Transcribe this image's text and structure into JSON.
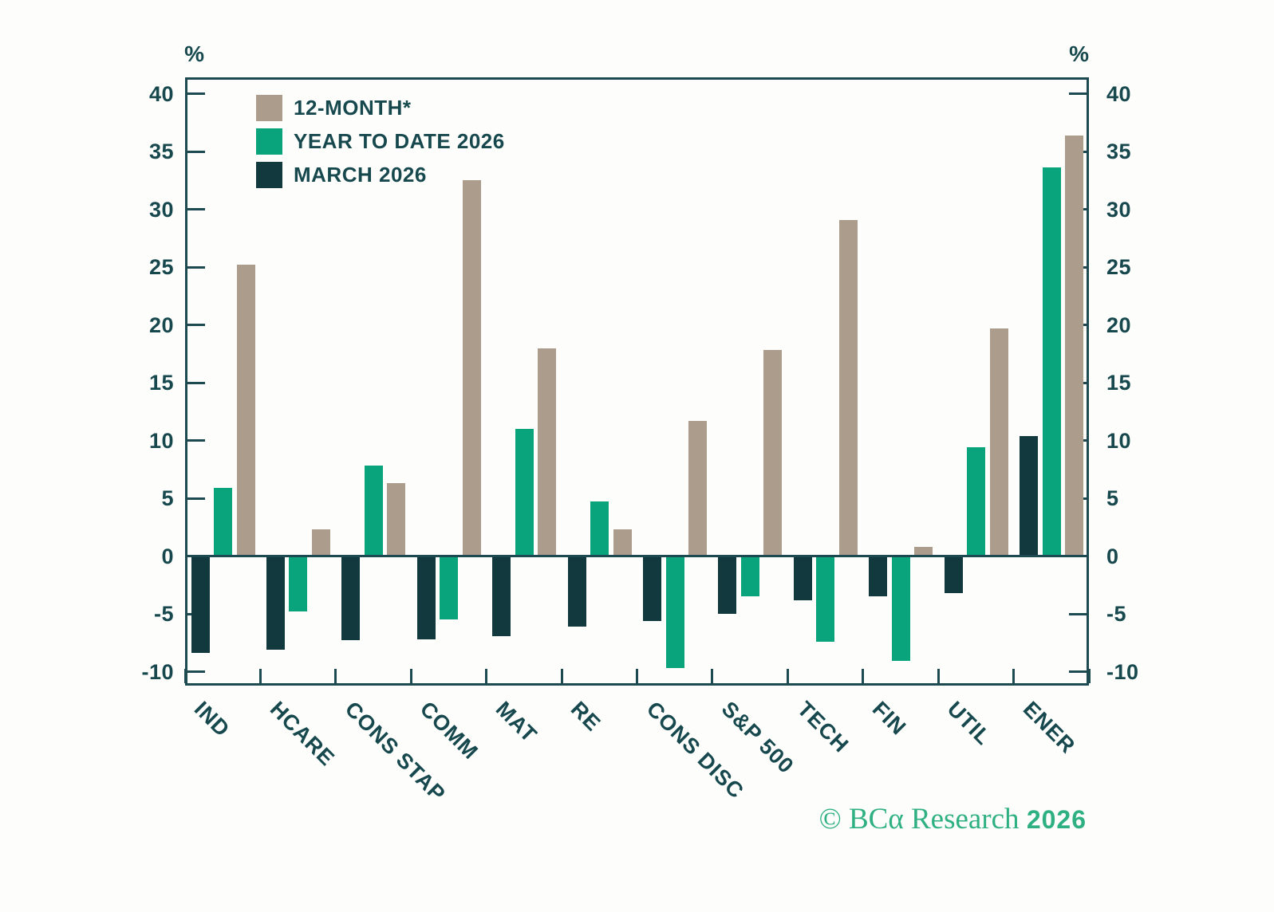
{
  "axes": {
    "left_unit": "%",
    "right_unit": "%",
    "tick_labels": [
      "40",
      "35",
      "30",
      "25",
      "20",
      "15",
      "10",
      "5",
      "0",
      "-5",
      "-10"
    ],
    "tick_values": [
      40,
      35,
      30,
      25,
      20,
      15,
      10,
      5,
      0,
      -5,
      -10
    ]
  },
  "legend": [
    {
      "label": "12-MONTH*",
      "series": "twelve-month",
      "color": "#ab9c8b"
    },
    {
      "label": "YEAR TO DATE 2026",
      "series": "year-to-date",
      "color": "#0aa47c"
    },
    {
      "label": "MARCH 2026",
      "series": "march",
      "color": "#12393d"
    }
  ],
  "chart_data": {
    "type": "bar",
    "categories": [
      "IND",
      "HCARE",
      "CONS STAP",
      "COMM",
      "MAT",
      "RE",
      "CONS DISC",
      "S&P 500",
      "TECH",
      "FIN",
      "UTIL",
      "ENER"
    ],
    "series": [
      {
        "name": "MARCH 2026",
        "key": "march",
        "color": "#12393d",
        "values": [
          -8.4,
          -8.1,
          -7.3,
          -7.2,
          -6.9,
          -6.1,
          -5.6,
          -5.0,
          -3.8,
          -3.5,
          -3.2,
          10.4
        ]
      },
      {
        "name": "YEAR TO DATE 2026",
        "key": "year-to-date",
        "color": "#0aa47c",
        "values": [
          5.9,
          -4.8,
          7.8,
          -5.5,
          11.0,
          4.7,
          -9.7,
          -3.5,
          -7.4,
          -9.1,
          9.4,
          33.6
        ]
      },
      {
        "name": "12-MONTH*",
        "key": "twelve-month",
        "color": "#ab9c8b",
        "values": [
          25.2,
          2.3,
          6.3,
          32.5,
          18.0,
          2.3,
          11.7,
          17.8,
          29.1,
          0.8,
          19.7,
          36.4
        ]
      }
    ],
    "title": "",
    "xlabel": "",
    "ylabel_left": "%",
    "ylabel_right": "%",
    "ylim": [
      -11.2,
      41.4
    ],
    "y_ticks": [
      40,
      35,
      30,
      25,
      20,
      15,
      10,
      5,
      0,
      -5,
      -10
    ],
    "grid": false,
    "legend_position": "top-left"
  },
  "footer": {
    "copyright": "© BCα Research",
    "year": "2026"
  },
  "colors": {
    "twelve_month": "#ab9c8b",
    "year_to_date": "#0aa47c",
    "march": "#12393d",
    "axis": "#1c4a50",
    "text": "#16484e",
    "copyright": "#2eb082",
    "background": "#fdfdfb"
  }
}
